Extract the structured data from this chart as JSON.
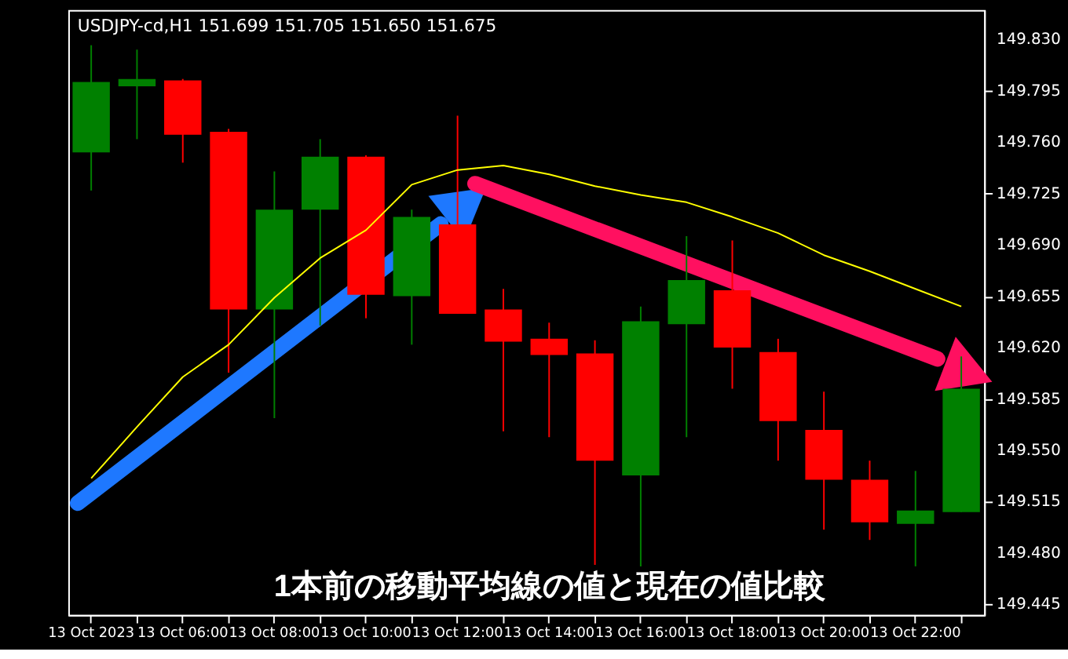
{
  "chart_data": {
    "type": "candlestick",
    "title": "USDJPY-cd,H1  151.699 151.705 151.650 151.675",
    "categories": [
      "13 Oct 2023",
      null,
      "13 Oct 06:00",
      null,
      "13 Oct 08:00",
      null,
      "13 Oct 10:00",
      null,
      "13 Oct 12:00",
      null,
      "13 Oct 14:00",
      null,
      "13 Oct 16:00",
      null,
      "13 Oct 18:00",
      null,
      "13 Oct 20:00",
      null,
      "13 Oct 22:00",
      null
    ],
    "ohlc": [
      [
        149.753,
        149.826,
        149.727,
        149.801
      ],
      [
        149.798,
        149.823,
        149.762,
        149.803
      ],
      [
        149.802,
        149.803,
        149.746,
        149.765
      ],
      [
        149.767,
        149.769,
        149.603,
        149.646
      ],
      [
        149.646,
        149.74,
        149.572,
        149.714
      ],
      [
        149.714,
        149.762,
        149.635,
        149.75
      ],
      [
        149.75,
        149.751,
        149.64,
        149.656
      ],
      [
        149.655,
        149.714,
        149.622,
        149.709
      ],
      [
        149.704,
        149.778,
        149.643,
        149.643
      ],
      [
        149.646,
        149.66,
        149.563,
        149.624
      ],
      [
        149.626,
        149.637,
        149.559,
        149.615
      ],
      [
        149.616,
        149.625,
        149.472,
        149.543
      ],
      [
        149.533,
        149.648,
        149.471,
        149.638
      ],
      [
        149.636,
        149.696,
        149.559,
        149.666
      ],
      [
        149.659,
        149.693,
        149.592,
        149.62
      ],
      [
        149.617,
        149.626,
        149.543,
        149.57
      ],
      [
        149.564,
        149.59,
        149.496,
        149.53
      ],
      [
        149.53,
        149.543,
        149.489,
        149.501
      ],
      [
        149.5,
        149.536,
        149.471,
        149.509
      ],
      [
        149.508,
        149.614,
        149.508,
        149.592
      ]
    ],
    "colors": [
      "#008000",
      "#008000",
      "#ff0000",
      "#ff0000",
      "#008000",
      "#008000",
      "#ff0000",
      "#008000",
      "#ff0000",
      "#ff0000",
      "#ff0000",
      "#ff0000",
      "#008000",
      "#008000",
      "#ff0000",
      "#ff0000",
      "#ff0000",
      "#ff0000",
      "#008000",
      "#008000"
    ],
    "series": [
      {
        "type": "line",
        "color": "#ffff00",
        "values": [
          149.531,
          149.566,
          149.6,
          149.622,
          149.654,
          149.681,
          149.7,
          149.731,
          149.741,
          149.744,
          149.738,
          149.73,
          149.724,
          149.719,
          149.709,
          149.698,
          149.683,
          149.672,
          149.66,
          149.648
        ]
      }
    ],
    "ylim": [
      149.438,
      149.85
    ],
    "yticks": [
      {
        "value": 149.445,
        "label": "149.445"
      },
      {
        "value": 149.48,
        "label": "149.480"
      },
      {
        "value": 149.515,
        "label": "149.515"
      },
      {
        "value": 149.55,
        "label": "149.550"
      },
      {
        "value": 149.585,
        "label": "149.585"
      },
      {
        "value": 149.62,
        "label": "149.620"
      },
      {
        "value": 149.655,
        "label": "149.655"
      },
      {
        "value": 149.69,
        "label": "149.690"
      },
      {
        "value": 149.725,
        "label": "149.725"
      },
      {
        "value": 149.76,
        "label": "149.760"
      },
      {
        "value": 149.795,
        "label": "149.795"
      },
      {
        "value": 149.83,
        "label": "149.830"
      }
    ],
    "grid": false,
    "annotations": [
      "1本前の移動平均線の値と現在の値比較"
    ]
  }
}
